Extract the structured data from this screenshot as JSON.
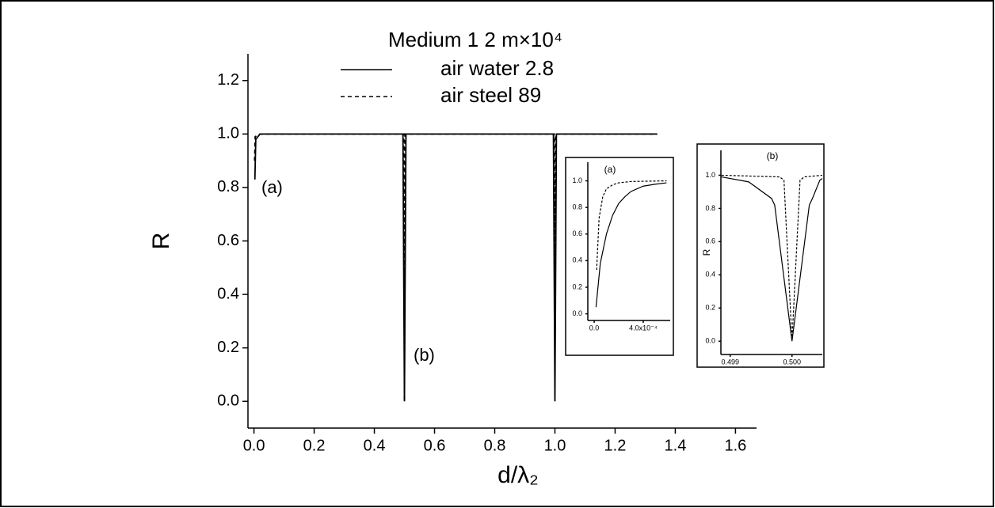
{
  "chart_data": [
    {
      "type": "line",
      "x_label": "d/λ₂",
      "y_label": "R",
      "legend_title": "Medium   1     2    m×10⁴",
      "xlim": [
        -0.02,
        1.67
      ],
      "ylim": [
        -0.1,
        1.3
      ],
      "xticks": [
        {
          "value": 0,
          "label": "0.0"
        },
        0.2,
        0.4,
        0.6,
        0.8,
        {
          "value": 1,
          "label": "1.0"
        },
        1.2,
        1.4,
        1.6
      ],
      "yticks": [
        {
          "value": 0,
          "label": "0.0"
        },
        0.2,
        0.4,
        0.6,
        0.8,
        {
          "value": 1,
          "label": "1.0"
        },
        1.2
      ],
      "series": [
        {
          "name": "air water 2.8",
          "color": "#000000",
          "dash": "solid",
          "x": [
            0.003,
            0.006,
            0.02,
            0.495,
            0.5,
            0.505,
            0.995,
            1.0,
            1.005,
            1.34
          ],
          "values": [
            0.83,
            0.98,
            1.0,
            1.0,
            0.0,
            1.0,
            1.0,
            0.0,
            1.0,
            1.0
          ]
        },
        {
          "name": "air steel 89",
          "color": "#000000",
          "dash": "dashed",
          "x": [
            0.002,
            0.004,
            0.02,
            0.498,
            0.5,
            0.502,
            0.998,
            1.0,
            1.002,
            1.34
          ],
          "values": [
            0.9,
            0.99,
            1.0,
            1.0,
            0.0,
            1.0,
            1.0,
            0.42,
            1.0,
            1.0
          ]
        }
      ],
      "annotations": [
        "(a)",
        "(b)"
      ]
    },
    {
      "type": "line",
      "title": "(a)",
      "xlim": [
        -5.2e-05,
        0.00062
      ],
      "ylim": [
        -0.05,
        1.14
      ],
      "xticks": [
        {
          "value": 0,
          "label": "0.0"
        },
        {
          "value": 0.0004,
          "label": "4.0x10⁻⁴"
        }
      ],
      "yticks": [
        {
          "value": 0,
          "label": "0.0"
        },
        0.2,
        0.4,
        0.6,
        0.8,
        {
          "value": 1,
          "label": "1.0"
        }
      ],
      "series": [
        {
          "color": "#000000",
          "dash": "solid",
          "x": [
            1.5e-05,
            5e-05,
            0.0001,
            0.00015,
            0.0002,
            0.00025,
            0.0003,
            0.0004,
            0.0005,
            0.00059
          ],
          "values": [
            0.05,
            0.38,
            0.6,
            0.74,
            0.83,
            0.88,
            0.92,
            0.96,
            0.975,
            0.985
          ]
        },
        {
          "color": "#000000",
          "dash": "dashed",
          "x": [
            2e-05,
            4e-05,
            7e-05,
            0.0001,
            0.00015,
            0.0002,
            0.0003,
            0.00059
          ],
          "values": [
            0.33,
            0.72,
            0.88,
            0.94,
            0.97,
            0.985,
            0.995,
            1.0
          ]
        }
      ]
    },
    {
      "type": "line",
      "title": "(b)",
      "y_label": "R",
      "xlim": [
        0.49885,
        0.50049
      ],
      "ylim": [
        -0.08,
        1.15
      ],
      "xticks": [
        0.499,
        {
          "value": 0.5,
          "label": "0.500"
        }
      ],
      "yticks": [
        {
          "value": 0,
          "label": "0.0"
        },
        0.2,
        0.4,
        0.6,
        0.8,
        {
          "value": 1,
          "label": "1.0"
        }
      ],
      "series": [
        {
          "color": "#000000",
          "dash": "solid",
          "x": [
            0.49886,
            0.4993,
            0.49967,
            0.49972,
            0.5,
            0.50028,
            0.50033,
            0.50045,
            0.50049
          ],
          "values": [
            0.99,
            0.96,
            0.86,
            0.82,
            0.0,
            0.82,
            0.86,
            0.97,
            0.98
          ]
        },
        {
          "color": "#000000",
          "dash": "dashed",
          "x": [
            0.49886,
            0.4998,
            0.49987,
            0.5,
            0.50013,
            0.5002,
            0.50049
          ],
          "values": [
            1.0,
            0.99,
            0.97,
            0.0,
            0.97,
            0.99,
            1.0
          ]
        }
      ]
    }
  ]
}
